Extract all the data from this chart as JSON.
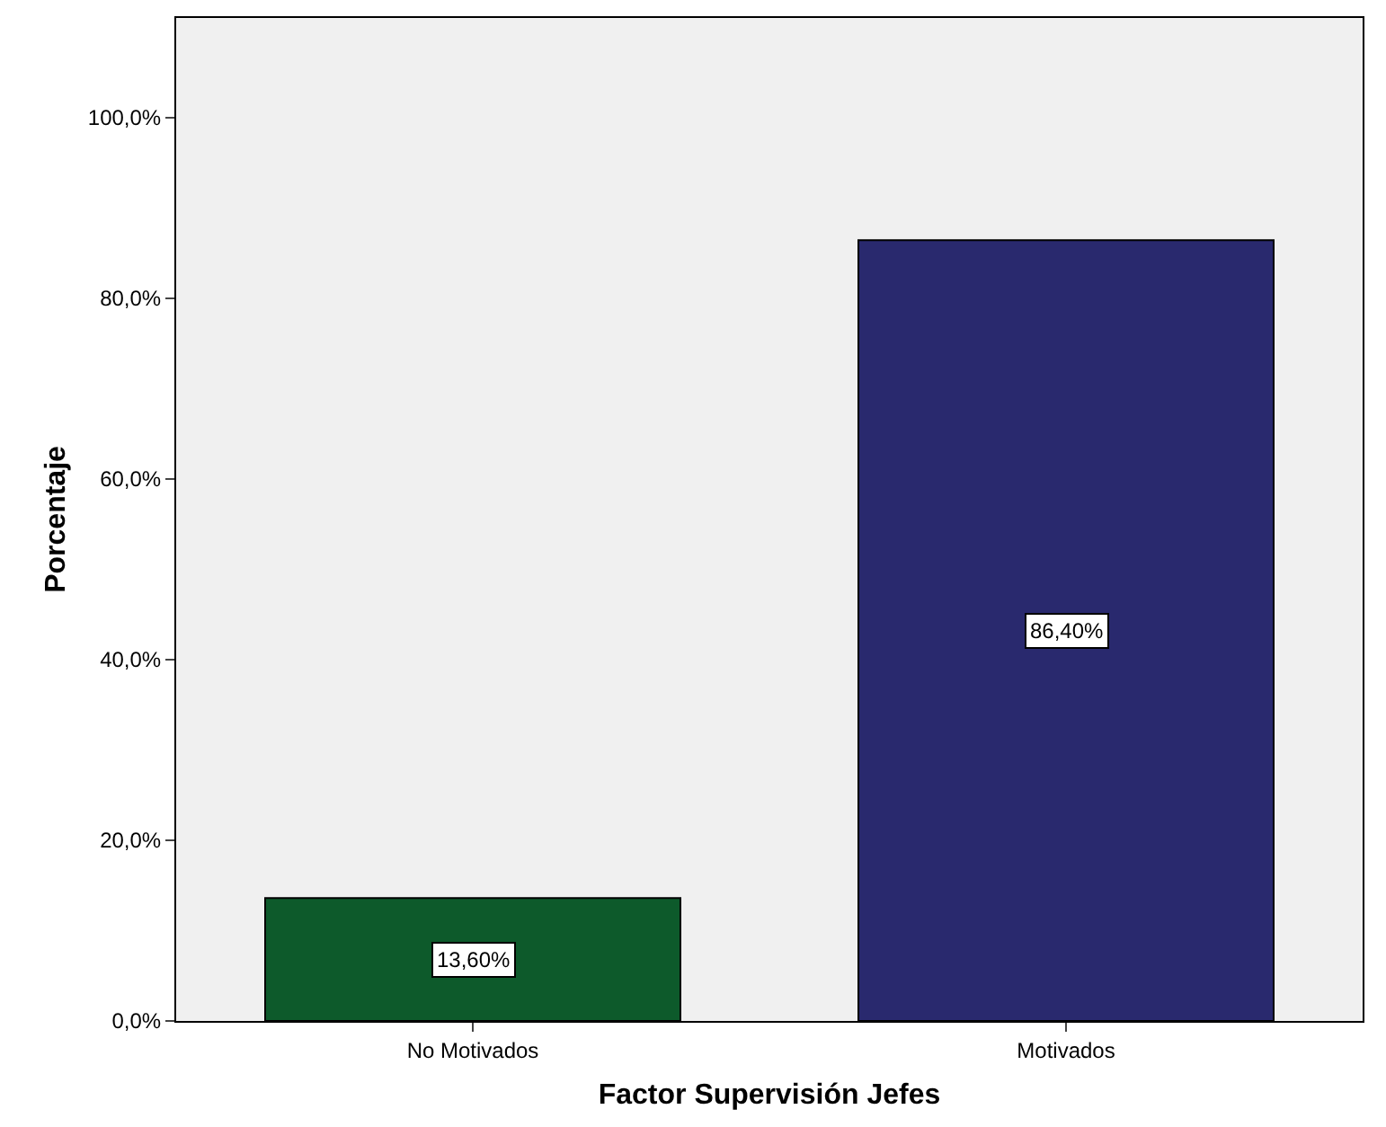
{
  "chart_data": {
    "type": "bar",
    "xlabel": "Factor Supervisión Jefes",
    "ylabel": "Porcentaje",
    "categories": [
      "No Motivados",
      "Motivados"
    ],
    "values": [
      13.6,
      86.4
    ],
    "colors": [
      "#0d5a2b",
      "#29296e"
    ],
    "value_labels": [
      "13,60%",
      "86,40%"
    ],
    "ylim": [
      0,
      111
    ],
    "yticks": [
      {
        "value": 0,
        "label": "0,0%"
      },
      {
        "value": 20,
        "label": "20,0%"
      },
      {
        "value": 40,
        "label": "40,0%"
      },
      {
        "value": 60,
        "label": "60,0%"
      },
      {
        "value": 80,
        "label": "80,0%"
      },
      {
        "value": 100,
        "label": "100,0%"
      }
    ],
    "grid": false,
    "legend": false
  }
}
